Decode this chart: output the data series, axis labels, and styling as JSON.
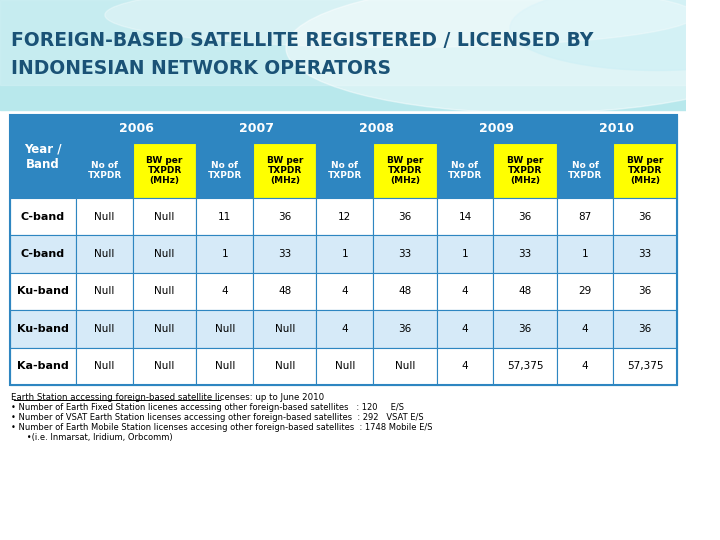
{
  "title_line1": "FOREIGN-BASED SATELLITE REGISTERED / LICENSED BY",
  "title_line2": "INDONESIAN NETWORK OPERATORS",
  "title_color": "#1a5276",
  "header_years": [
    "2006",
    "2007",
    "2008",
    "2009",
    "2010"
  ],
  "header_bg_blue": "#2e86c1",
  "header_bg_yellow": "#ffff00",
  "row_bands": [
    "C-band",
    "C-band",
    "Ku-band",
    "Ku-band",
    "Ka-band"
  ],
  "table_data": [
    [
      "Null",
      "Null",
      "11",
      "36",
      "12",
      "36",
      "14",
      "36",
      "87",
      "36"
    ],
    [
      "Null",
      "Null",
      "1",
      "33",
      "1",
      "33",
      "1",
      "33",
      "1",
      "33"
    ],
    [
      "Null",
      "Null",
      "4",
      "48",
      "4",
      "48",
      "4",
      "48",
      "29",
      "36"
    ],
    [
      "Null",
      "Null",
      "Null",
      "Null",
      "4",
      "36",
      "4",
      "36",
      "4",
      "36"
    ],
    [
      "Null",
      "Null",
      "Null",
      "Null",
      "Null",
      "Null",
      "4",
      "57,375",
      "4",
      "57,375"
    ]
  ],
  "row_bg_white": "#ffffff",
  "row_bg_light_blue": "#d6eaf8",
  "footnote_underline": "Earth Station accessing foreign-based satellite licenses: up to June 2010",
  "footnotes": [
    "• Number of Earth Fixed Station licenes accessing other foreign-based satellites   : 120     E/S",
    "• Number of VSAT Earth Station licenses accessing other foreign-based satellites  : 292   VSAT E/S",
    "• Number of Earth Mobile Station licenses accesing other foreign-based satellites  : 1748 Mobile E/S",
    "      •(i.e. Inmarsat, Iridium, Orbcomm)"
  ],
  "border_color": "#2e86c1"
}
